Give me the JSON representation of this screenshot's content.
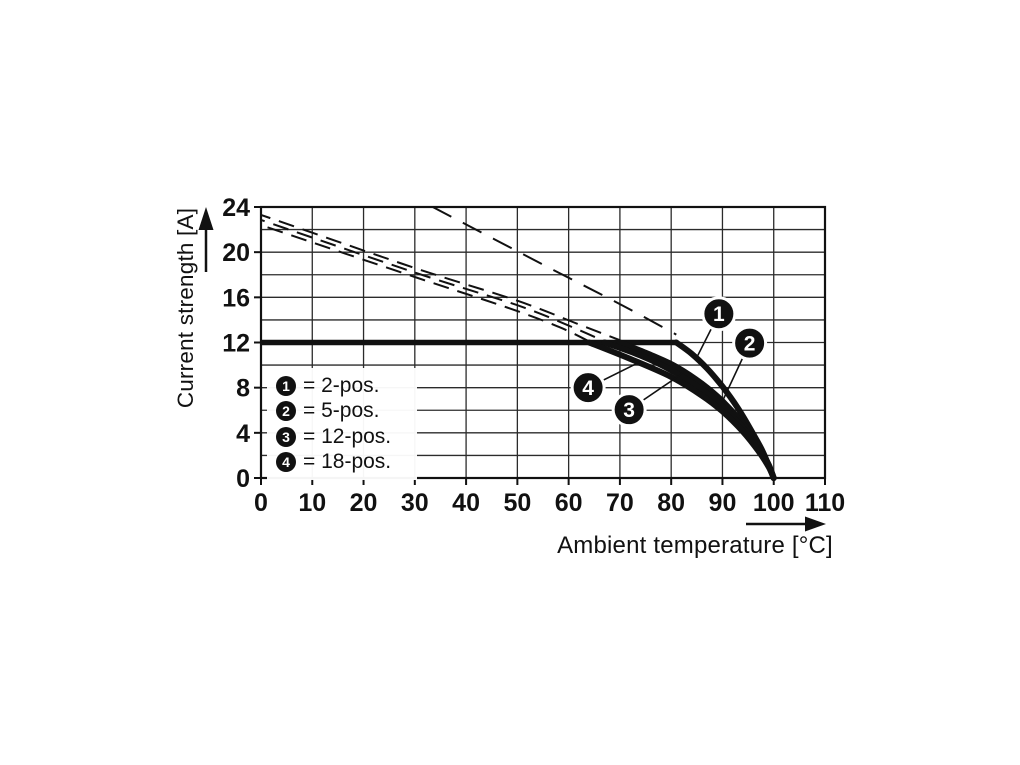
{
  "axes": {
    "y_title": "Current strength [A]",
    "x_title": "Ambient temperature [°C]"
  },
  "legend": {
    "items": [
      {
        "marker": "1",
        "label": "= 2-pos."
      },
      {
        "marker": "2",
        "label": "= 5-pos."
      },
      {
        "marker": "3",
        "label": "= 12-pos."
      },
      {
        "marker": "4",
        "label": "= 18-pos."
      }
    ]
  },
  "chart_data": {
    "type": "line",
    "title": "",
    "xlabel": "Ambient temperature [°C]",
    "ylabel": "Current strength [A]",
    "xlim": [
      0,
      110
    ],
    "ylim": [
      0,
      24
    ],
    "x_ticks": [
      0,
      10,
      20,
      30,
      40,
      50,
      60,
      70,
      80,
      90,
      100,
      110
    ],
    "y_ticks": [
      0,
      4,
      8,
      12,
      16,
      20,
      24
    ],
    "grid": {
      "x_step": 10,
      "y_step": 2,
      "on": true,
      "color": "#2b2b2b"
    },
    "line_color": "#111111",
    "rated_line": {
      "y": 12,
      "x_start": 0,
      "x_end": 81
    },
    "series": [
      {
        "name": "2-pos",
        "callout": "1",
        "dashed": [
          [
            33.5,
            24
          ],
          [
            55,
            18.9
          ],
          [
            70,
            15.4
          ],
          [
            81,
            12.7
          ]
        ],
        "solid": [
          [
            81,
            12
          ],
          [
            84,
            11.0
          ],
          [
            87,
            9.7
          ],
          [
            90,
            8.1
          ],
          [
            93,
            6.2
          ],
          [
            96,
            3.9
          ],
          [
            98,
            2.2
          ],
          [
            100,
            0
          ]
        ],
        "dash_pattern": "21 13"
      },
      {
        "name": "5-pos",
        "callout": "2",
        "dashed": [
          [
            0,
            23.3
          ],
          [
            30,
            18.6
          ],
          [
            50,
            15.7
          ],
          [
            62,
            13.6
          ],
          [
            70,
            12.2
          ]
        ],
        "solid": [
          [
            70,
            12
          ],
          [
            76,
            10.9
          ],
          [
            81,
            9.85
          ],
          [
            86,
            8.35
          ],
          [
            90,
            6.8
          ],
          [
            94,
            4.8
          ],
          [
            97,
            2.85
          ],
          [
            99,
            1.2
          ],
          [
            100,
            0
          ]
        ],
        "dash_pattern": "16 9"
      },
      {
        "name": "12-pos",
        "callout": "3",
        "dashed": [
          [
            0,
            22.85
          ],
          [
            30,
            18.2
          ],
          [
            50,
            15.3
          ],
          [
            60,
            13.5
          ],
          [
            67,
            12.1
          ]
        ],
        "solid": [
          [
            67,
            12
          ],
          [
            74,
            10.85
          ],
          [
            80,
            9.55
          ],
          [
            86,
            7.85
          ],
          [
            90,
            6.35
          ],
          [
            94,
            4.45
          ],
          [
            97,
            2.6
          ],
          [
            99,
            1.1
          ],
          [
            100,
            0
          ]
        ],
        "dash_pattern": "16 9"
      },
      {
        "name": "18-pos",
        "callout": "4",
        "dashed": [
          [
            0,
            22.4
          ],
          [
            30,
            17.8
          ],
          [
            48,
            15.1
          ],
          [
            58,
            13.4
          ],
          [
            64,
            12.1
          ]
        ],
        "solid": [
          [
            64,
            12
          ],
          [
            72,
            10.55
          ],
          [
            80,
            8.95
          ],
          [
            86,
            7.3
          ],
          [
            90,
            5.9
          ],
          [
            94,
            4.1
          ],
          [
            97,
            2.4
          ],
          [
            99,
            1.0
          ],
          [
            100,
            0
          ]
        ],
        "dash_pattern": "16 9"
      }
    ],
    "callouts": [
      {
        "label": "1",
        "circle": [
          89.3,
          14.55
        ],
        "target": [
          84.8,
          10.5
        ]
      },
      {
        "label": "2",
        "circle": [
          95.3,
          11.95
        ],
        "target": [
          90.0,
          6.8
        ]
      },
      {
        "label": "3",
        "circle": [
          71.8,
          6.05
        ],
        "target": [
          82.0,
          9.2
        ]
      },
      {
        "label": "4",
        "circle": [
          63.8,
          8.0
        ],
        "target": [
          74.0,
          10.3
        ]
      }
    ]
  }
}
